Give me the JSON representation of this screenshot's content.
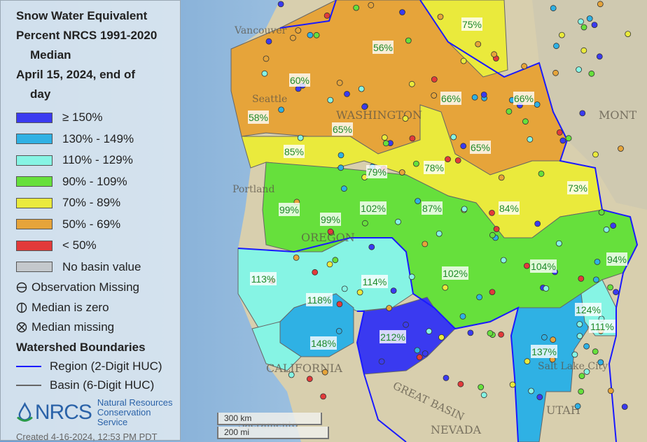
{
  "legend": {
    "title_lines": [
      "Snow Water Equivalent",
      "Percent NRCS 1991-2020",
      "Median",
      "April 15, 2024, end of",
      "day"
    ],
    "categories": [
      {
        "label": "≥ 150%",
        "color": "#3a3af0"
      },
      {
        "label": "130% - 149%",
        "color": "#2fb1e4"
      },
      {
        "label": "110% - 129%",
        "color": "#86f4e4"
      },
      {
        "label": "90% - 109%",
        "color": "#66e03c"
      },
      {
        "label": "70% - 89%",
        "color": "#eaea3c"
      },
      {
        "label": "50% - 69%",
        "color": "#e6a43a"
      },
      {
        "label": "< 50%",
        "color": "#e23a3a"
      },
      {
        "label": "No basin value",
        "color": "#c4c8cc"
      }
    ],
    "symbols": [
      {
        "icon": "circle-horizontal-line-icon",
        "label": "Observation Missing"
      },
      {
        "icon": "circle-vertical-line-icon",
        "label": "Median is zero"
      },
      {
        "icon": "circle-x-icon",
        "label": "Median missing"
      }
    ],
    "boundaries_title": "Watershed Boundaries",
    "boundaries": [
      {
        "label": "Region (2-Digit HUC)",
        "color": "#1a1aff"
      },
      {
        "label": "Basin (6-Digit HUC)",
        "color": "#666666"
      }
    ],
    "logo_text": "NRCS",
    "logo_sub_1": "Natural Resources",
    "logo_sub_2": "Conservation Service",
    "created": "Created 4-16-2024, 12:53 PM PDT"
  },
  "map": {
    "basin_labels": [
      "75%",
      "56%",
      "60%",
      "66%",
      "66%",
      "58%",
      "65%",
      "65%",
      "85%",
      "79%",
      "78%",
      "73%",
      "99%",
      "99%",
      "102%",
      "87%",
      "84%",
      "94%",
      "113%",
      "114%",
      "102%",
      "104%",
      "118%",
      "124%",
      "111%",
      "148%",
      "212%",
      "137%"
    ],
    "places": [
      "Vancouver",
      "Seattle",
      "WASHINGTON",
      "Portland",
      "OREGON",
      "CALIFORNIA",
      "NEVADA",
      "UTAH",
      "MONT",
      "Salt Lake City",
      "Sacramento",
      "GREAT BASIN"
    ],
    "scale": {
      "km": "300 km",
      "mi": "200 mi"
    }
  }
}
